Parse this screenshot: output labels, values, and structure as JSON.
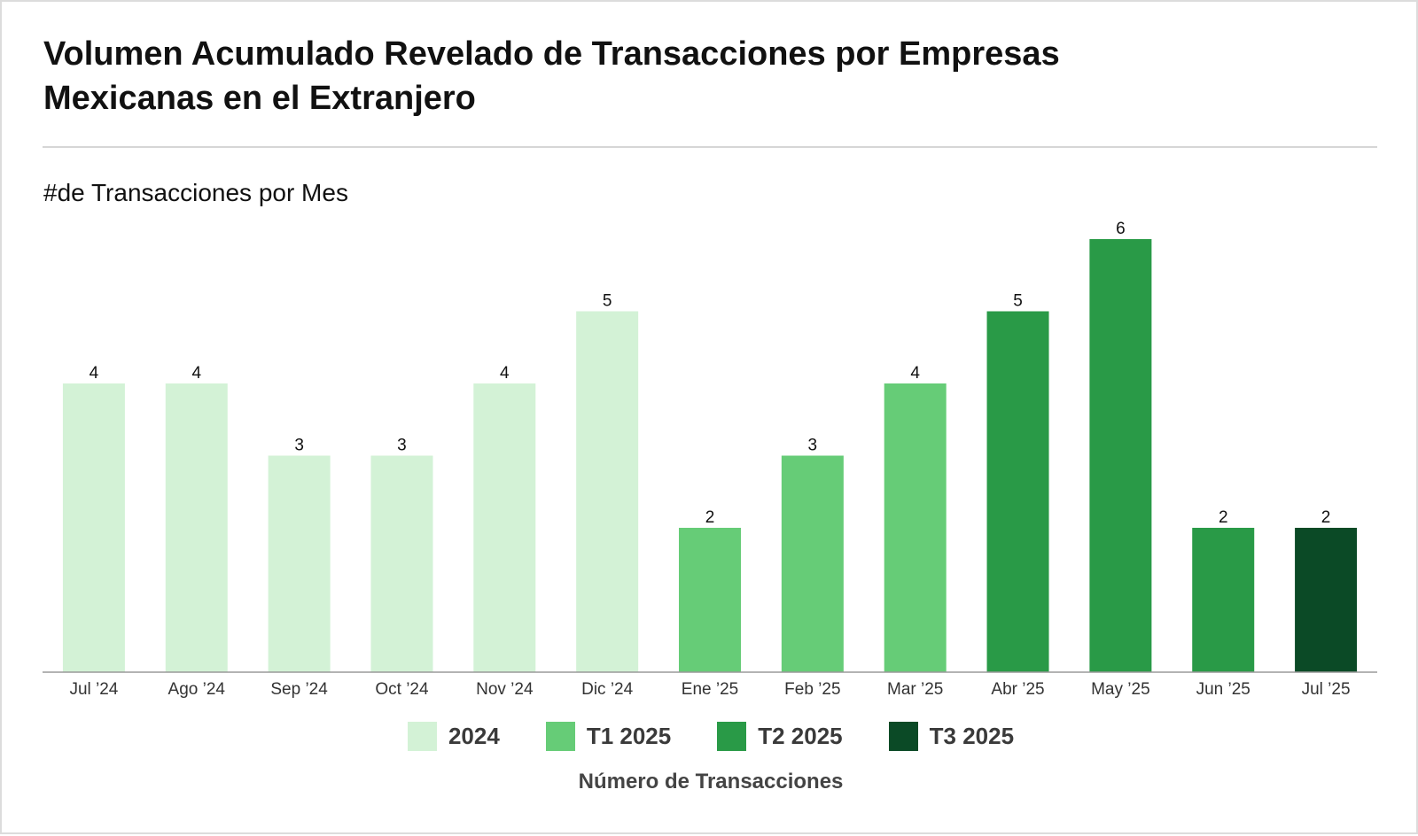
{
  "title": "Volumen Acumulado Revelado de Transacciones por Empresas Mexicanas en el Extranjero",
  "subtitle": "#de Transacciones por Mes",
  "footer": "Número de Transacciones",
  "legend": [
    {
      "label": "2024",
      "color": "#d3f2d6"
    },
    {
      "label": "T1 2025",
      "color": "#66cc77"
    },
    {
      "label": "T2 2025",
      "color": "#299a47"
    },
    {
      "label": "T3 2025",
      "color": "#0b4a26"
    }
  ],
  "chart_data": {
    "type": "bar",
    "title": "Volumen Acumulado Revelado de Transacciones por Empresas Mexicanas en el Extranjero",
    "subtitle": "#de Transacciones por Mes",
    "xlabel": "Número de Transacciones",
    "ylabel": "",
    "ylim": [
      0,
      6
    ],
    "grid": false,
    "legend_position": "bottom",
    "categories": [
      "Jul ’24",
      "Ago ’24",
      "Sep ’24",
      "Oct ’24",
      "Nov ’24",
      "Dic ’24",
      "Ene ’25",
      "Feb ’25",
      "Mar ’25",
      "Abr ’25",
      "May ’25",
      "Jun ’25",
      "Jul ’25"
    ],
    "values": [
      4,
      4,
      3,
      3,
      4,
      5,
      2,
      3,
      4,
      5,
      6,
      2,
      2
    ],
    "groups": [
      "2024",
      "2024",
      "2024",
      "2024",
      "2024",
      "2024",
      "T1 2025",
      "T1 2025",
      "T1 2025",
      "T2 2025",
      "T2 2025",
      "T2 2025",
      "T3 2025"
    ],
    "data_labels": true
  }
}
